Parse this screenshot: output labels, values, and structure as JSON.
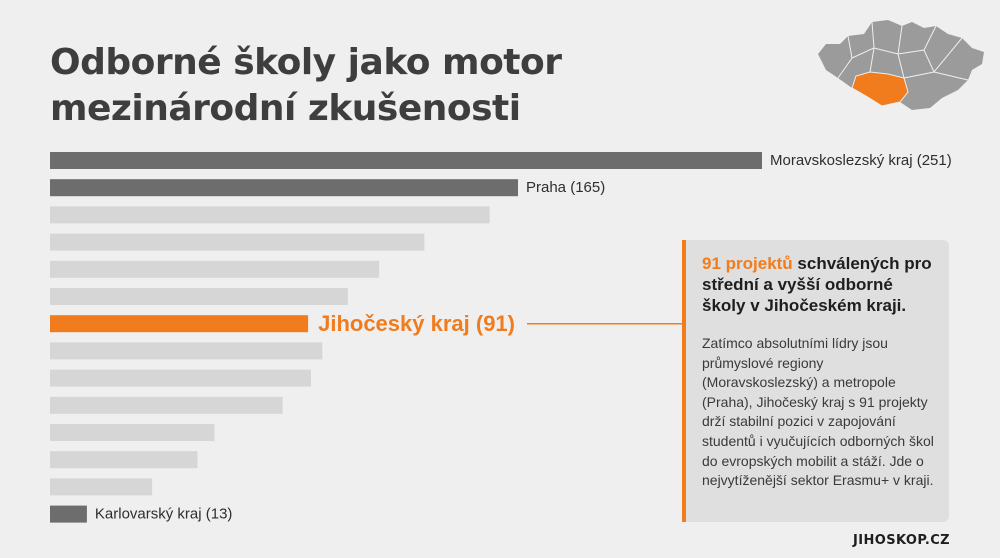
{
  "title": {
    "line1": "Odborné školy jako motor",
    "line2": "mezinárodní zkušenosti"
  },
  "chart_data": {
    "type": "bar",
    "orientation": "horizontal",
    "categories": [
      "Moravskoslezský kraj",
      "Praha",
      "",
      "",
      "",
      "",
      "Jihočeský kraj",
      "",
      "",
      "",
      "",
      "",
      "",
      "Karlovarský kraj"
    ],
    "values": [
      251,
      165,
      155,
      132,
      116,
      105,
      91,
      96,
      92,
      82,
      58,
      52,
      36,
      13
    ],
    "labels": [
      "Moravskoslezský kraj (251)",
      "Praha (165)",
      "",
      "",
      "",
      "",
      "Jihočeský kraj (91)",
      "",
      "",
      "",
      "",
      "",
      "",
      "Karlovarský kraj (13)"
    ],
    "highlight_index": 6,
    "colors": {
      "labeled": "#6d6d6d",
      "unlabeled": "#d6d6d6",
      "highlight": "#f07c1e",
      "connector": "#f07c1e"
    },
    "xlabel": "",
    "ylabel": "",
    "grid": false,
    "legend": "none"
  },
  "info": {
    "highlight": "91 projektů",
    "headline_rest": " schválených pro střední a vyšší odborné školy v Jihočeském kraji.",
    "body": "Zatímco absolutními lídry jsou průmyslové regiony (Moravskoslezský) a metropole (Praha), Jihočeský kraj s 91 projekty drží stabilní pozici v zapojování studentů i vyučujících odborných škol do evropských mobilit a stáží. Jde o nejvytíženější sektor Erasmu+ v kraji."
  },
  "map": {
    "icon": "czech-regions-map-icon",
    "base_color": "#9b9b9b",
    "highlight_color": "#f07c1e"
  },
  "brand": "JIHOSKOP.CZ"
}
